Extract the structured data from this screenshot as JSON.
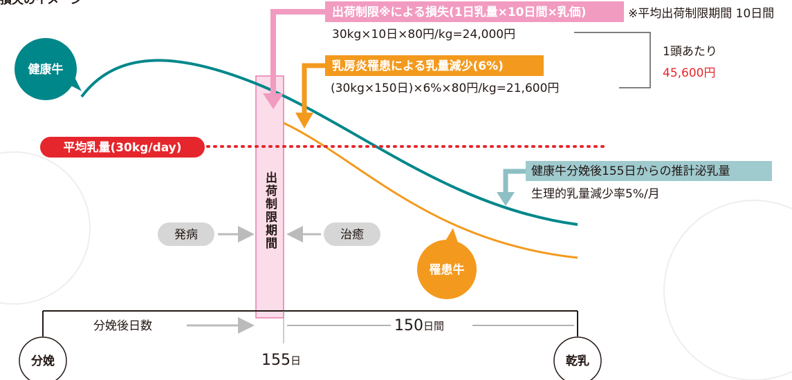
{
  "title": "損失のイメージ",
  "loss_shipping": {
    "label": "出荷制限※による損失(1日乳量×10日間×乳価)",
    "note": "※平均出荷制限期間 10日間",
    "formula": "30kg×10日×80円/kg=24,000円"
  },
  "loss_mastitis": {
    "label": "乳房炎罹患による乳量減少(6%)",
    "formula": "(30kg×150日)×6%×80円/kg=21,600円"
  },
  "per_head": {
    "label": "1頭あたり",
    "total": "45,600円"
  },
  "healthy_cow": "健康牛",
  "average_yield": "平均乳量(30kg/day)",
  "restriction_period": "出荷制限期間",
  "estimate": {
    "label": "健康牛分娩後155日からの推計泌乳量",
    "note": "生理的乳量減少率5%/月"
  },
  "onset": "発病",
  "recovery": "治癒",
  "sick_cow": "罹患牛",
  "axis": {
    "label": "分娩後日数",
    "span_value": "150",
    "span_unit": "日間",
    "day_value": "155",
    "day_unit": "日",
    "start": "分娩",
    "end": "乾乳"
  }
}
